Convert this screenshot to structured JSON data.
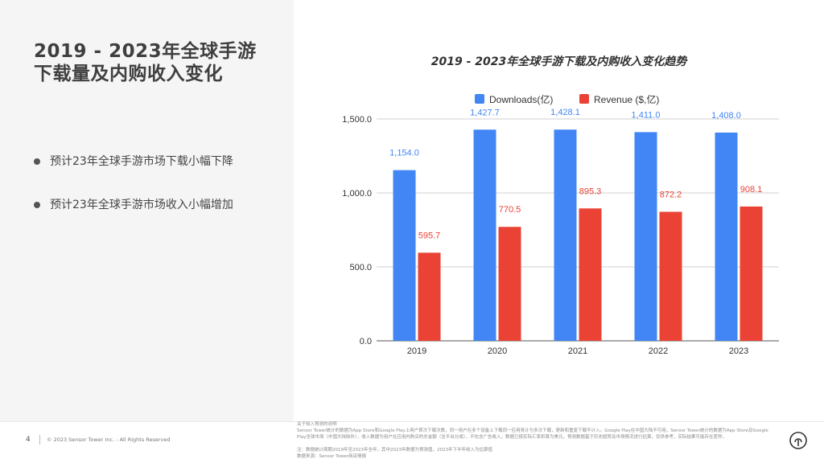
{
  "page": {
    "title": "2019 - 2023年全球手游下载量及内购收入变化",
    "bullets": [
      "预计23年全球手游市场下载小幅下降",
      "预计23年全球手游市场收入小幅增加"
    ]
  },
  "chart_data": {
    "type": "bar",
    "title": "2019 - 2023年全球手游下载及内购收入变化趋势",
    "categories": [
      "2019",
      "2020",
      "2021",
      "2022",
      "2023"
    ],
    "series": [
      {
        "name": "Downloads(亿)",
        "color": "#4285f4",
        "label_color": "#4285f4",
        "values": [
          1154.0,
          1427.7,
          1428.1,
          1411.0,
          1408.0
        ],
        "labels": [
          "1,154.0",
          "1,427.7",
          "1,428.1",
          "1,411.0",
          "1,408.0"
        ]
      },
      {
        "name": "Revenue ($,亿)",
        "color": "#ea4335",
        "label_color": "#ea4335",
        "values": [
          595.7,
          770.5,
          895.3,
          872.2,
          908.1
        ],
        "labels": [
          "595.7",
          "770.5",
          "895.3",
          "872.2",
          "908.1"
        ]
      }
    ],
    "yticks": [
      0,
      500,
      1000,
      1500
    ],
    "ytick_labels": [
      "0.0",
      "500.0",
      "1,000.0",
      "1,500.0"
    ],
    "ylim": [
      0,
      1500
    ],
    "legend_position": "top",
    "grid": true
  },
  "footer": {
    "page_number": "4",
    "copyright": "© 2023 Sensor Tower Inc. - All Rights Reserved",
    "notes": [
      "关于收入预测的说明",
      "Sensor Tower统计的数据为App Store和Google Play上用户首次下载次数，同一用户在多个设备上下载同一应用将计为多次下载，更新和重复下载不计入。Google Play在中国大陆不可用，Sensor Tower统计的数据为App Store及Google",
      "Play全球市场（中国大陆除外），收入数据为用户在应用内购买的总金额（含平台分成），不包含广告收入，数据已按实际汇率折算为美元，预测数据基于历史趋势及市场情况进行估算，仅供参考，实际结果可能存在差异。",
      "",
      "注：数据统计周期2019年至2023年全年，其中2023年数据为预测值，2023年下半年收入为估算值",
      "数据来源：Sensor Tower商店情报"
    ]
  }
}
